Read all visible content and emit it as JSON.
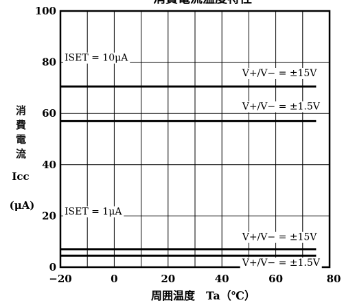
{
  "chart_data": {
    "type": "line",
    "title_fragment": "消費電流温度特性",
    "xlabel": "周囲温度　Ta（℃）",
    "ylabel_chars": [
      "消",
      "費",
      "電",
      "流"
    ],
    "ylabel_symbol": "Icc",
    "ylabel_unit": "(μA)",
    "xlim": [
      -20,
      80
    ],
    "ylim": [
      0,
      100
    ],
    "x_ticks": [
      -20,
      0,
      20,
      40,
      60,
      80
    ],
    "x_tick_labels": [
      "−20",
      "0",
      "20",
      "40",
      "60",
      "80"
    ],
    "y_ticks": [
      0,
      20,
      40,
      60,
      80,
      100
    ],
    "y_tick_labels": [
      "0",
      "20",
      "40",
      "60",
      "80",
      "100"
    ],
    "grid": true,
    "series": [
      {
        "x": [
          -20,
          75
        ],
        "y": [
          70.5,
          70.5
        ]
      },
      {
        "x": [
          -20,
          75
        ],
        "y": [
          57,
          57
        ]
      },
      {
        "x": [
          -20,
          75
        ],
        "y": [
          7,
          7
        ]
      },
      {
        "x": [
          -20,
          75
        ],
        "y": [
          4.5,
          4.5
        ]
      }
    ],
    "annotations": [
      {
        "text": "ISET = 10μA",
        "x": -20,
        "y": 80
      },
      {
        "text": "V+/V− = ±15V",
        "x": 46,
        "y": 74
      },
      {
        "text": "V+/V− = ±1.5V",
        "x": 46,
        "y": 61
      },
      {
        "text": "ISET = 1μA",
        "x": -20,
        "y": 20
      },
      {
        "text": "V+/V− = ±15V",
        "x": 46,
        "y": 10
      },
      {
        "text": "V+/V− = ±1.5V",
        "x": 46,
        "y": 0
      }
    ]
  }
}
